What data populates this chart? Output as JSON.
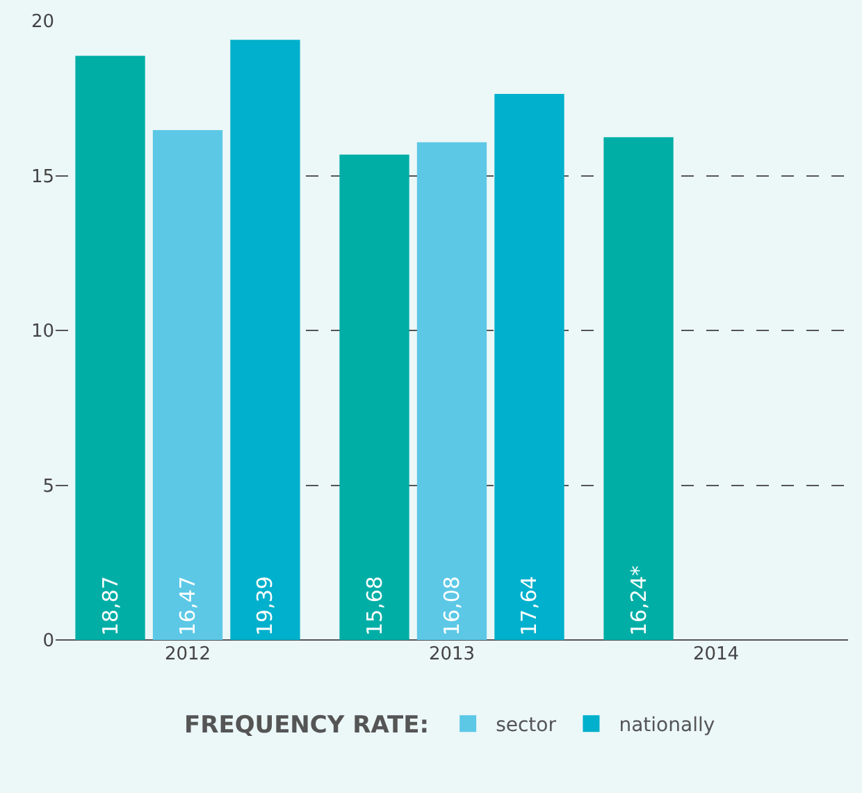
{
  "chart_data": {
    "type": "bar",
    "categories": [
      "2012",
      "2013",
      "2014"
    ],
    "legend_title": "FREQUENCY RATE:",
    "series": [
      {
        "color": "#00aea6",
        "values": [
          18.87,
          15.68,
          16.24
        ],
        "value_labels": [
          "18,87",
          "15,68",
          "16,24*"
        ]
      },
      {
        "name": "sector",
        "color": "#5cc8e6",
        "values": [
          16.47,
          16.08,
          null
        ],
        "value_labels": [
          "16,47",
          "16,08",
          null
        ]
      },
      {
        "name": "nationally",
        "color": "#00b0cc",
        "values": [
          19.39,
          17.64,
          null
        ],
        "value_labels": [
          "19,39",
          "17,64",
          null
        ]
      }
    ],
    "ylim": [
      0,
      20
    ],
    "yticks": [
      0,
      5,
      10,
      15,
      20
    ],
    "grid": "y",
    "legend": "bottom"
  }
}
